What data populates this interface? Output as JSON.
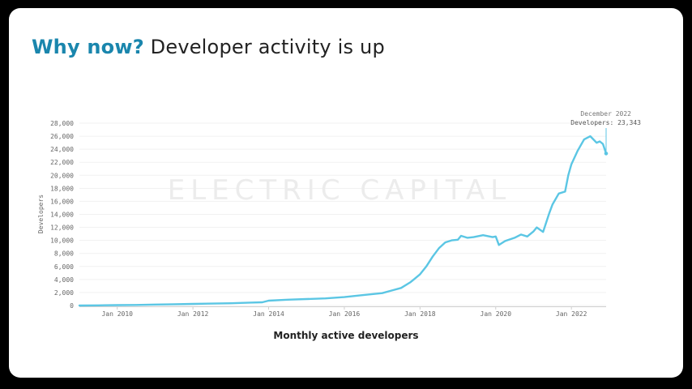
{
  "slide": {
    "title_accent": "Why now?",
    "title_rest": "Developer activity is up",
    "caption": "Monthly active developers",
    "watermark": "ELECTRIC CAPITAL"
  },
  "chart_data": {
    "type": "line",
    "ylabel": "Developers",
    "xlabel": "",
    "ylim": [
      0,
      28000
    ],
    "xlim": [
      "2009-01",
      "2022-12"
    ],
    "grid": true,
    "y_ticks": [
      "0",
      "2,000",
      "4,000",
      "6,000",
      "8,000",
      "10,000",
      "12,000",
      "14,000",
      "16,000",
      "18,000",
      "20,000",
      "22,000",
      "24,000",
      "26,000",
      "28,000"
    ],
    "x_ticks": [
      "Jan 2010",
      "Jan 2012",
      "Jan 2014",
      "Jan 2016",
      "Jan 2018",
      "Jan 2020",
      "Jan 2022"
    ],
    "annotation": {
      "line1": "December 2022",
      "line2": "Developers: 23,343"
    },
    "line_color": "#5bc6e4",
    "series": [
      {
        "x": [
          "2009-01",
          "2009-07",
          "2010-01",
          "2010-07",
          "2011-01",
          "2011-07",
          "2012-01",
          "2012-07",
          "2013-01",
          "2013-07",
          "2013-11",
          "2014-01",
          "2014-07",
          "2015-01",
          "2015-07",
          "2016-01",
          "2016-07",
          "2017-01",
          "2017-04",
          "2017-07",
          "2017-10",
          "2018-01",
          "2018-03",
          "2018-05",
          "2018-07",
          "2018-09",
          "2018-11",
          "2019-01",
          "2019-02",
          "2019-04",
          "2019-06",
          "2019-09",
          "2019-12",
          "2020-01",
          "2020-02",
          "2020-04",
          "2020-07",
          "2020-09",
          "2020-11",
          "2021-01",
          "2021-02",
          "2021-04",
          "2021-06",
          "2021-07",
          "2021-09",
          "2021-11",
          "2021-12",
          "2022-01",
          "2022-03",
          "2022-05",
          "2022-07",
          "2022-09",
          "2022-10",
          "2022-11",
          "2022-12"
        ],
        "values": [
          0,
          30,
          60,
          90,
          150,
          200,
          250,
          300,
          350,
          450,
          500,
          750,
          900,
          1000,
          1100,
          1300,
          1600,
          1900,
          2300,
          2700,
          3600,
          4800,
          6000,
          7500,
          8800,
          9700,
          10000,
          10100,
          10700,
          10400,
          10500,
          10800,
          10500,
          10600,
          9300,
          9900,
          10400,
          10900,
          10600,
          11400,
          12000,
          11300,
          14200,
          15500,
          17200,
          17500,
          20000,
          21700,
          23800,
          25500,
          26000,
          25000,
          25200,
          24800,
          23343
        ]
      }
    ]
  }
}
